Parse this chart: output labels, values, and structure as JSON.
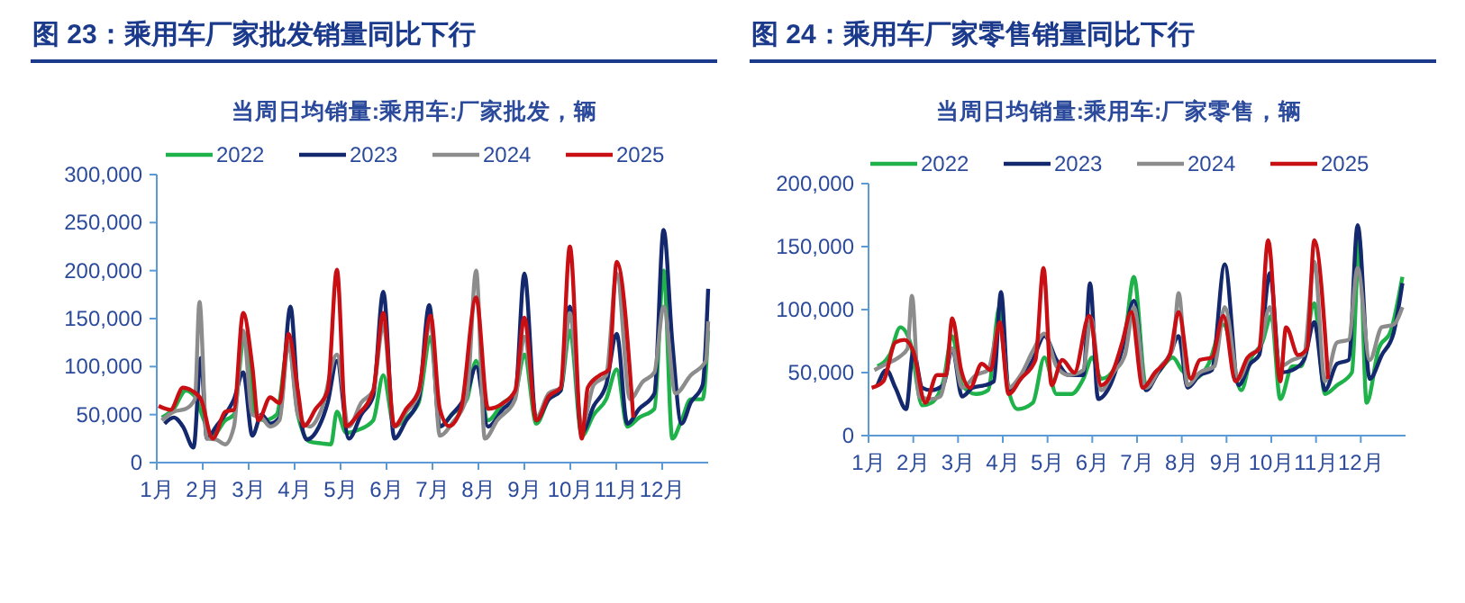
{
  "chart_data": [
    {
      "type": "line",
      "title": "图 23：乘用车厂家批发销量同比下行",
      "subtitle": "当周日均销量:乘用车:厂家批发，辆",
      "xlim": [
        1,
        13
      ],
      "xticks": [
        {
          "value": 1,
          "label": "1月"
        },
        {
          "value": 2,
          "label": "2月"
        },
        {
          "value": 3,
          "label": "3月"
        },
        {
          "value": 4,
          "label": "4月"
        },
        {
          "value": 5,
          "label": "5月"
        },
        {
          "value": 6,
          "label": "6月"
        },
        {
          "value": 7,
          "label": "7月"
        },
        {
          "value": 8,
          "label": "8月"
        },
        {
          "value": 9,
          "label": "9月"
        },
        {
          "value": 10,
          "label": "10月"
        },
        {
          "value": 11,
          "label": "11月"
        },
        {
          "value": 12,
          "label": "12月"
        }
      ],
      "ylim": [
        0,
        300000
      ],
      "yticks": [
        0,
        {
          "value": 50000,
          "label": "50,000"
        },
        {
          "value": 100000,
          "label": "100,000"
        },
        {
          "value": 150000,
          "label": "150,000"
        },
        {
          "value": 200000,
          "label": "200,000"
        },
        {
          "value": 250000,
          "label": "250,000"
        },
        {
          "value": 300000,
          "label": "300,000"
        }
      ],
      "legend": "top",
      "grid": false,
      "marker": "none",
      "line_style": "solid",
      "series": [
        {
          "name": "2022",
          "color": "#1fb24a",
          "x": [
            1.11,
            1.37,
            1.63,
            1.83,
            2.03,
            2.22,
            2.49,
            2.68,
            2.91,
            3.14,
            3.34,
            3.61,
            3.87,
            4.07,
            4.33,
            4.59,
            4.79,
            4.92,
            5.12,
            5.38,
            5.71,
            5.93,
            6.17,
            6.43,
            6.7,
            6.96,
            7.16,
            7.42,
            7.75,
            7.95,
            8.21,
            8.54,
            8.8,
            9,
            9.26,
            9.53,
            9.79,
            9.99,
            10.25,
            10.51,
            10.78,
            11.01,
            11.24,
            11.5,
            11.83,
            12.03,
            12.22,
            12.42,
            12.62,
            12.88,
            13
          ],
          "values": [
            47000,
            56000,
            75000,
            69000,
            44000,
            28000,
            44000,
            50000,
            134000,
            50000,
            44000,
            50000,
            125000,
            50000,
            22000,
            20000,
            19000,
            53000,
            31000,
            34000,
            44000,
            91000,
            37500,
            47000,
            62500,
            131000,
            37500,
            50000,
            66000,
            106000,
            44000,
            62500,
            72000,
            112500,
            40600,
            66000,
            75000,
            137500,
            28000,
            50000,
            66000,
            97000,
            37500,
            47000,
            56000,
            200000,
            25000,
            44000,
            66000,
            66000,
            137500
          ]
        },
        {
          "name": "2023",
          "color": "#14286e",
          "x": [
            1.17,
            1.37,
            1.57,
            1.8,
            1.96,
            2.09,
            2.29,
            2.49,
            2.68,
            2.88,
            3.08,
            3.28,
            3.47,
            3.67,
            3.91,
            4.07,
            4.26,
            4.53,
            4.72,
            4.92,
            5.18,
            5.45,
            5.71,
            5.93,
            6.17,
            6.43,
            6.7,
            6.93,
            7.16,
            7.42,
            7.75,
            7.95,
            8.21,
            8.54,
            8.8,
            9,
            9.26,
            9.53,
            9.79,
            9.99,
            10.25,
            10.51,
            10.78,
            11.01,
            11.24,
            11.5,
            11.83,
            12.03,
            12.22,
            12.42,
            12.62,
            12.88,
            13
          ],
          "values": [
            40600,
            47000,
            37500,
            15600,
            109000,
            25000,
            37500,
            50000,
            66000,
            94000,
            28000,
            50000,
            40600,
            47000,
            162500,
            69000,
            24000,
            37500,
            62500,
            106000,
            25000,
            50000,
            69000,
            178000,
            25000,
            44000,
            66000,
            164000,
            37500,
            50000,
            72000,
            100000,
            37500,
            56000,
            69000,
            197000,
            44000,
            66000,
            75000,
            162500,
            31000,
            59000,
            81000,
            134000,
            40600,
            56000,
            72000,
            242500,
            125000,
            40600,
            62500,
            81000,
            181000
          ]
        },
        {
          "name": "2024",
          "color": "#8c8c8c",
          "x": [
            1.11,
            1.37,
            1.63,
            1.83,
            1.93,
            2.09,
            2.29,
            2.49,
            2.68,
            2.88,
            3.08,
            3.28,
            3.47,
            3.67,
            3.87,
            4.07,
            4.33,
            4.59,
            4.92,
            5.18,
            5.45,
            5.71,
            5.93,
            6.17,
            6.43,
            6.7,
            6.96,
            7.16,
            7.42,
            7.75,
            7.95,
            8.14,
            8.41,
            8.8,
            9,
            9.26,
            9.53,
            9.79,
            9.99,
            10.25,
            10.51,
            10.78,
            11.01,
            11.3,
            11.57,
            11.83,
            12.03,
            12.29,
            12.62,
            12.95,
            13
          ],
          "values": [
            44000,
            53000,
            56000,
            66000,
            167500,
            25000,
            24000,
            19000,
            37500,
            137500,
            50000,
            47000,
            37500,
            44000,
            125000,
            50000,
            37500,
            56000,
            112500,
            37500,
            62500,
            75000,
            144000,
            37500,
            53000,
            72000,
            147000,
            28000,
            40600,
            69000,
            200000,
            25000,
            44000,
            66000,
            131000,
            47000,
            72000,
            78000,
            156000,
            37500,
            81000,
            91000,
            197000,
            66000,
            84000,
            94000,
            162500,
            72000,
            91000,
            106000,
            147000
          ]
        },
        {
          "name": "2025",
          "color": "#c80f14",
          "x": [
            1.04,
            1.3,
            1.57,
            1.76,
            1.96,
            2.22,
            2.49,
            2.68,
            2.88,
            3.08,
            3.21,
            3.47,
            3.67,
            3.87,
            4.07,
            4.2,
            4.46,
            4.72,
            4.92,
            5.12,
            5.38,
            5.71,
            5.93,
            6.17,
            6.43,
            6.7,
            6.96,
            7.16,
            7.36,
            7.62,
            7.95,
            8.21,
            8.54,
            8.8,
            9,
            9.26,
            9.53,
            9.79,
            9.99,
            10.25,
            10.38,
            10.64,
            10.84,
            11.01,
            11.37
          ],
          "values": [
            59000,
            55000,
            78000,
            75000,
            66000,
            25000,
            53000,
            55000,
            156000,
            100000,
            44000,
            68000,
            62000,
            134000,
            75000,
            38000,
            56000,
            75000,
            201000,
            38000,
            50000,
            75000,
            156000,
            38000,
            56000,
            75000,
            153000,
            56000,
            38000,
            56000,
            172000,
            56000,
            62000,
            75000,
            151000,
            44000,
            69000,
            78000,
            225000,
            25000,
            78000,
            91000,
            97000,
            209000,
            47000
          ]
        }
      ]
    },
    {
      "type": "line",
      "title": "图 24：乘用车厂家零售销量同比下行",
      "subtitle": "当周日均销量:乘用车:厂家零售，辆",
      "xlim": [
        1,
        13
      ],
      "xticks": [
        {
          "value": 1,
          "label": "1月"
        },
        {
          "value": 2,
          "label": "2月"
        },
        {
          "value": 3,
          "label": "3月"
        },
        {
          "value": 4,
          "label": "4月"
        },
        {
          "value": 5,
          "label": "5月"
        },
        {
          "value": 6,
          "label": "6月"
        },
        {
          "value": 7,
          "label": "7月"
        },
        {
          "value": 8,
          "label": "8月"
        },
        {
          "value": 9,
          "label": "9月"
        },
        {
          "value": 10,
          "label": "10月"
        },
        {
          "value": 11,
          "label": "11月"
        },
        {
          "value": 12,
          "label": "12月"
        }
      ],
      "ylim": [
        0,
        200000
      ],
      "yticks": [
        0,
        {
          "value": 50000,
          "label": "50,000"
        },
        {
          "value": 100000,
          "label": "100,000"
        },
        {
          "value": 150000,
          "label": "150,000"
        },
        {
          "value": 200000,
          "label": "200,000"
        }
      ],
      "legend": "top",
      "grid": false,
      "marker": "none",
      "line_style": "solid",
      "series": [
        {
          "name": "2022",
          "color": "#1fb24a",
          "x": [
            1.2,
            1.47,
            1.71,
            1.93,
            2.2,
            2.4,
            2.67,
            2.87,
            3.09,
            3.4,
            3.67,
            3.93,
            4.13,
            4.33,
            4.67,
            4.93,
            5.2,
            5.53,
            5.8,
            6,
            6.2,
            6.53,
            6.73,
            6.93,
            7.2,
            7.47,
            7.8,
            8,
            8.27,
            8.6,
            8.93,
            9.33,
            9.53,
            9.8,
            10,
            10.2,
            10.47,
            10.67,
            10.96,
            11.2,
            11.47,
            11.8,
            11.97,
            12.13,
            12.4,
            12.67,
            12.93
          ],
          "values": [
            55000,
            64000,
            86000,
            74000,
            24000,
            26000,
            43000,
            79000,
            40000,
            33000,
            36000,
            102000,
            36000,
            21000,
            26000,
            62000,
            33000,
            33000,
            45000,
            62000,
            45000,
            55000,
            79000,
            126000,
            40000,
            50000,
            62000,
            52000,
            45000,
            57000,
            88000,
            36000,
            60000,
            74000,
            95000,
            29000,
            55000,
            55000,
            105000,
            33000,
            40000,
            50000,
            155000,
            26000,
            69000,
            83000,
            126000
          ]
        },
        {
          "name": "2023",
          "color": "#14286e",
          "x": [
            1.2,
            1.4,
            1.6,
            1.84,
            2,
            2.2,
            2.4,
            2.67,
            2.87,
            3.09,
            3.33,
            3.6,
            3.8,
            3.96,
            4.13,
            4.4,
            4.67,
            4.93,
            5.2,
            5.47,
            5.8,
            5.95,
            6.13,
            6.4,
            6.67,
            6.93,
            7.2,
            7.47,
            7.73,
            7.93,
            8.13,
            8.4,
            8.67,
            8.96,
            9.27,
            9.53,
            9.73,
            9.97,
            10.2,
            10.47,
            10.73,
            10.96,
            11.2,
            11.47,
            11.73,
            11.93,
            12.2,
            12.47,
            12.73,
            12.93
          ],
          "values": [
            40000,
            52000,
            38000,
            21000,
            67000,
            38000,
            36000,
            40000,
            69000,
            31000,
            38000,
            40000,
            43000,
            114000,
            36000,
            45000,
            60000,
            79000,
            60000,
            48000,
            48000,
            121000,
            29000,
            40000,
            69000,
            107000,
            36000,
            50000,
            64000,
            79000,
            38000,
            48000,
            52000,
            136000,
            40000,
            57000,
            64000,
            129000,
            50000,
            52000,
            60000,
            90000,
            36000,
            57000,
            60000,
            167000,
            45000,
            64000,
            81000,
            121000
          ]
        },
        {
          "name": "2024",
          "color": "#8c8c8c",
          "x": [
            1.13,
            1.4,
            1.67,
            1.87,
            1.97,
            2.13,
            2.4,
            2.6,
            2.87,
            3.09,
            3.4,
            3.67,
            3.93,
            4.13,
            4.4,
            4.67,
            4.93,
            5.2,
            5.47,
            5.8,
            5.97,
            6.2,
            6.47,
            6.73,
            6.93,
            7.2,
            7.53,
            7.8,
            7.93,
            8.13,
            8.4,
            8.73,
            8.96,
            9.27,
            9.53,
            9.73,
            9.97,
            10.2,
            10.47,
            10.73,
            10.96,
            11.2,
            11.47,
            11.73,
            11.93,
            12.2,
            12.47,
            12.73,
            12.93
          ],
          "values": [
            52000,
            57000,
            62000,
            69000,
            111000,
            31000,
            29000,
            31000,
            69000,
            38000,
            48000,
            52000,
            88000,
            38000,
            48000,
            67000,
            81000,
            55000,
            48000,
            52000,
            93000,
            36000,
            50000,
            64000,
            102000,
            38000,
            55000,
            69000,
            113000,
            40000,
            50000,
            55000,
            102000,
            45000,
            64000,
            69000,
            102000,
            55000,
            60000,
            64000,
            138000,
            43000,
            74000,
            76000,
            133000,
            60000,
            86000,
            88000,
            102000
          ]
        },
        {
          "name": "2025",
          "color": "#c80f14",
          "x": [
            1.07,
            1.33,
            1.6,
            1.8,
            2,
            2.27,
            2.53,
            2.73,
            2.87,
            3.07,
            3.27,
            3.53,
            3.73,
            3.93,
            4.13,
            4.4,
            4.73,
            4.91,
            5.09,
            5.33,
            5.6,
            5.93,
            6.2,
            6.47,
            6.67,
            6.87,
            7.13,
            7.4,
            7.73,
            7.93,
            8.2,
            8.4,
            8.67,
            8.93,
            9.2,
            9.47,
            9.73,
            9.93,
            10.2,
            10.33,
            10.6,
            10.8,
            10.96,
            11.27
          ],
          "values": [
            38000,
            43000,
            74000,
            76000,
            67000,
            26000,
            48000,
            48000,
            93000,
            52000,
            38000,
            57000,
            52000,
            90000,
            33000,
            45000,
            60000,
            133000,
            40000,
            60000,
            50000,
            95000,
            40000,
            52000,
            74000,
            98000,
            38000,
            50000,
            64000,
            98000,
            45000,
            60000,
            62000,
            95000,
            43000,
            62000,
            69000,
            155000,
            43000,
            86000,
            64000,
            69000,
            155000,
            45000
          ]
        }
      ]
    }
  ]
}
